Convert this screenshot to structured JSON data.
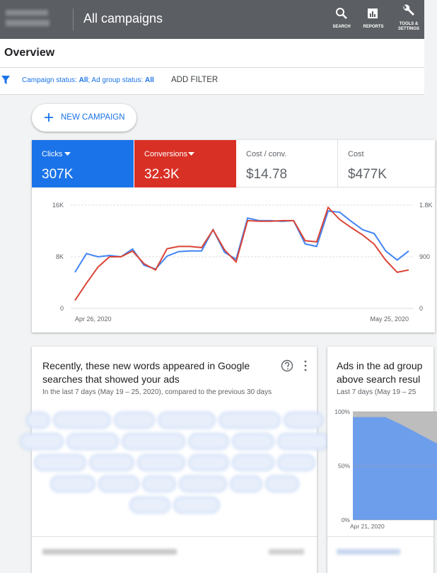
{
  "header": {
    "title": "All campaigns",
    "nav": [
      "SEARCH",
      "REPORTS",
      "TOOLS & SETTINGS"
    ]
  },
  "overview": "Overview",
  "filter": {
    "segments": [
      "Campaign status: ",
      "All",
      "; Ad group status: ",
      "All"
    ],
    "add": "ADD FILTER"
  },
  "new_campaign": "NEW CAMPAIGN",
  "metrics": [
    {
      "value": "307K"
    },
    {
      "value": "32.3K"
    },
    {
      "label": "Cost / conv.",
      "value": "$14.78"
    },
    {
      "label": "Cost",
      "value": "$477K"
    }
  ],
  "cards": [
    {
      "title": "Recently, these new words appeared in Google searches that showed your ads",
      "subtitle": "In the last 7 days (May 19 – 25, 2020), compared to the previous 30 days"
    },
    {
      "title_lines": [
        "Ads in the ad group",
        "above search resul"
      ],
      "subtitle": "Last 7 days (May 19 – 25"
    }
  ],
  "chart_data": [
    {
      "type": "line",
      "categories": [
        "Apr 26, 2020",
        null,
        null,
        null,
        null,
        null,
        null,
        null,
        null,
        null,
        null,
        null,
        null,
        null,
        null,
        null,
        null,
        null,
        null,
        null,
        null,
        null,
        null,
        null,
        null,
        null,
        null,
        null,
        null,
        "May 25, 2020"
      ],
      "series": [
        {
          "name": "Clicks",
          "color": "#4285f4",
          "values": [
            5600,
            8500,
            8000,
            8200,
            8000,
            9200,
            6700,
            6100,
            8100,
            8800,
            8900,
            8900,
            12200,
            8700,
            7600,
            14000,
            13600,
            13600,
            13500,
            13600,
            10000,
            9600,
            15100,
            14900,
            13500,
            12200,
            11600,
            8900,
            7500,
            8900
          ]
        },
        {
          "name": "Conversions",
          "color": "#db4437",
          "axis": "y2",
          "values": [
            140,
            440,
            720,
            900,
            900,
            1000,
            780,
            670,
            1040,
            1080,
            1080,
            1060,
            1370,
            1020,
            810,
            1530,
            1520,
            1520,
            1530,
            1530,
            1180,
            1160,
            1760,
            1550,
            1410,
            1280,
            1120,
            840,
            630,
            670
          ]
        }
      ],
      "ylim": [
        0,
        16000
      ],
      "yticks": [
        0,
        {
          "value": 8000,
          "label": "8K"
        },
        {
          "value": 16000,
          "label": "16K"
        }
      ],
      "y2lim": [
        0,
        1800
      ],
      "y2ticks": [
        0,
        900,
        {
          "value": 1800,
          "label": "1.8K"
        }
      ],
      "grid": true
    },
    {
      "type": "area",
      "categories": [
        "Apr 21, 2020",
        null,
        null,
        null,
        null,
        null,
        null
      ],
      "values": [
        95,
        95,
        95,
        88,
        80,
        72,
        64
      ],
      "color": "#6d9eeb",
      "ylim": [
        0,
        100
      ],
      "yticks": [
        {
          "value": 0,
          "label": "0%"
        },
        {
          "value": 50,
          "label": "50%"
        },
        {
          "value": 100,
          "label": "100%"
        }
      ],
      "grid": true
    }
  ]
}
